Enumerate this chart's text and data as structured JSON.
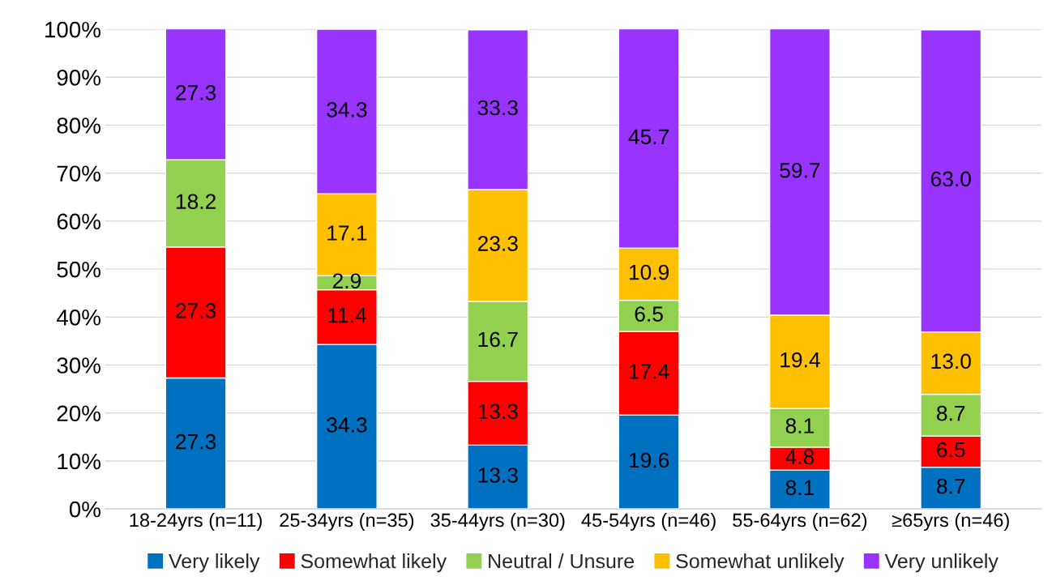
{
  "chart_data": {
    "type": "bar",
    "stacked": true,
    "categories": [
      "18-24yrs (n=11)",
      "25-34yrs (n=35)",
      "35-44yrs (n=30)",
      "45-54yrs (n=46)",
      "55-64yrs (n=62)",
      "≥65yrs (n=46)"
    ],
    "series": [
      {
        "name": "Very likely",
        "color": "#0070c0",
        "values": [
          27.3,
          34.3,
          13.3,
          19.6,
          8.1,
          8.7
        ],
        "value_labels": [
          "27.3",
          "34.3",
          "13.3",
          "19.6",
          "8.1",
          "8.7"
        ]
      },
      {
        "name": "Somewhat likely",
        "color": "#ff0000",
        "values": [
          27.3,
          11.4,
          13.3,
          17.4,
          4.8,
          6.5
        ],
        "value_labels": [
          "27.3",
          "11.4",
          "13.3",
          "17.4",
          "4.8",
          "6.5"
        ]
      },
      {
        "name": "Neutral / Unsure",
        "color": "#92d050",
        "values": [
          18.2,
          2.9,
          16.7,
          6.5,
          8.1,
          8.7
        ],
        "value_labels": [
          "18.2",
          "2.9",
          "16.7",
          "6.5",
          "8.1",
          "8.7"
        ]
      },
      {
        "name": "Somewhat unlikely",
        "color": "#ffc000",
        "values": [
          null,
          17.1,
          23.3,
          10.9,
          19.4,
          13.0
        ],
        "value_labels": [
          null,
          "17.1",
          "23.3",
          "10.9",
          "19.4",
          "13.0"
        ]
      },
      {
        "name": "Very unlikely",
        "color": "#9933ff",
        "values": [
          27.3,
          34.3,
          33.3,
          45.7,
          59.7,
          63.0
        ],
        "value_labels": [
          "27.3",
          "34.3",
          "33.3",
          "45.7",
          "59.7",
          "63.0"
        ]
      }
    ],
    "ylim": [
      0,
      100
    ],
    "yticks": [
      {
        "value": 0,
        "label": "0%"
      },
      {
        "value": 10,
        "label": "10%"
      },
      {
        "value": 20,
        "label": "20%"
      },
      {
        "value": 30,
        "label": "30%"
      },
      {
        "value": 40,
        "label": "40%"
      },
      {
        "value": 50,
        "label": "50%"
      },
      {
        "value": 60,
        "label": "60%"
      },
      {
        "value": 70,
        "label": "70%"
      },
      {
        "value": 80,
        "label": "80%"
      },
      {
        "value": 90,
        "label": "90%"
      },
      {
        "value": 100,
        "label": "100%"
      }
    ],
    "grid": "y",
    "legend": "bottom"
  }
}
